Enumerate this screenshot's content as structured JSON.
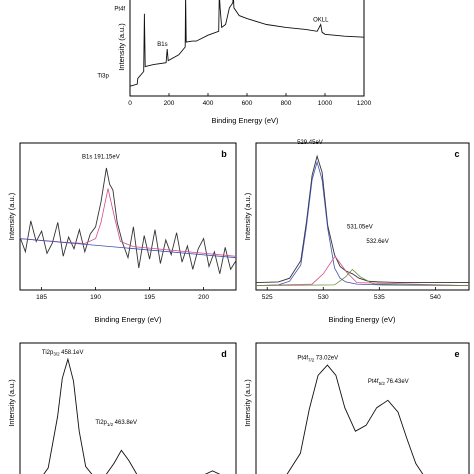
{
  "chart_data": [
    {
      "panel_label": "",
      "type": "line",
      "title": "",
      "xlabel": "Binding Energy (eV)",
      "ylabel": "Intensity (a.u.)",
      "xlim": [
        0,
        1200
      ],
      "xticks": [
        "0",
        "200",
        "400",
        "600",
        "800",
        "1000",
        "1200"
      ],
      "ylim": [
        0,
        10
      ],
      "grid": false,
      "annotations": [
        {
          "text": "Ti3p",
          "x": 38,
          "y": 1.6
        },
        {
          "text": "Pt4f",
          "x": 74,
          "y": 8.4
        },
        {
          "text": "B1s",
          "x": 191,
          "y": 4.8
        },
        {
          "text": "C1s",
          "x": 285,
          "y": 10.0
        },
        {
          "text": "OKLL",
          "x": 980,
          "y": 7.3
        }
      ],
      "series": [
        {
          "x": [
            0,
            37,
            40,
            70,
            74,
            78,
            120,
            185,
            191,
            196,
            250,
            283,
            285,
            288,
            320,
            340,
            400,
            455,
            458,
            462,
            470,
            490,
            510,
            527,
            530,
            533,
            560,
            600,
            700,
            800,
            900,
            960,
            978,
            985,
            1000,
            1100,
            1200
          ],
          "y": [
            1.0,
            1.2,
            1.8,
            2.5,
            8.4,
            3.0,
            3.2,
            3.4,
            4.8,
            3.6,
            4.2,
            5.0,
            10.5,
            5.5,
            5.6,
            5.6,
            6.2,
            6.6,
            10.5,
            9.0,
            7.0,
            7.3,
            9.0,
            9.5,
            10.5,
            9.0,
            8.2,
            7.9,
            7.3,
            7.0,
            6.8,
            6.6,
            7.3,
            6.5,
            6.3,
            6.1,
            6.0
          ]
        }
      ]
    },
    {
      "panel_label": "b",
      "type": "line",
      "title": "",
      "xlabel": "Binding Energy (eV)",
      "ylabel": "Intensity (a.u.)",
      "xlim": [
        183,
        203
      ],
      "xticks": [
        "185",
        "190",
        "195",
        "200"
      ],
      "ylim": [
        0,
        10
      ],
      "grid": false,
      "annotations": [
        {
          "text": "B1s 191.15eV",
          "x": 191.15,
          "y": 8.6
        }
      ],
      "series": [
        {
          "name": "",
          "color": "#333333",
          "x": [
            183.0,
            183.5,
            184.0,
            184.5,
            185.0,
            185.5,
            186.0,
            186.5,
            187.0,
            187.5,
            188.0,
            188.5,
            189.0,
            189.5,
            190.0,
            190.5,
            191.0,
            191.3,
            191.6,
            192.0,
            192.5,
            193.0,
            193.5,
            194.0,
            194.5,
            195.0,
            195.5,
            196.0,
            196.5,
            197.0,
            197.5,
            198.0,
            198.5,
            199.0,
            199.5,
            200.0,
            200.5,
            201.0,
            201.5,
            202.0,
            202.5,
            203.0
          ],
          "y": [
            3.6,
            2.6,
            4.7,
            3.3,
            4.0,
            2.5,
            3.2,
            4.6,
            2.3,
            3.6,
            2.8,
            4.1,
            2.6,
            3.8,
            4.3,
            6.0,
            8.3,
            7.2,
            6.8,
            4.6,
            3.2,
            2.2,
            4.3,
            1.5,
            3.7,
            2.1,
            4.1,
            1.8,
            3.4,
            2.4,
            3.9,
            1.9,
            3.0,
            1.4,
            2.8,
            3.5,
            1.6,
            2.6,
            1.1,
            2.9,
            1.4,
            2.0
          ]
        },
        {
          "name": "",
          "color": "#d24b8c",
          "x": [
            183,
            187,
            189,
            190,
            190.5,
            191.15,
            191.8,
            192.3,
            193.5,
            203
          ],
          "y": [
            3.5,
            3.25,
            3.16,
            3.5,
            4.6,
            6.9,
            4.8,
            3.3,
            2.95,
            2.29
          ]
        },
        {
          "name": "",
          "color": "#3d4fb0",
          "x": [
            183,
            203
          ],
          "y": [
            3.5,
            2.2
          ]
        }
      ]
    },
    {
      "panel_label": "c",
      "type": "line",
      "title": "",
      "xlabel": "Binding Energy (eV)",
      "ylabel": "Intensity (a.u.)",
      "xlim": [
        524,
        543
      ],
      "xticks": [
        "525",
        "530",
        "535",
        "540"
      ],
      "ylim": [
        0,
        10
      ],
      "grid": false,
      "annotations": [
        {
          "text": "529.45eV",
          "x": 529.45,
          "y": 9.6
        },
        {
          "text": "531.05eV",
          "x": 531.05,
          "y": 3.3
        },
        {
          "text": "532.6eV",
          "x": 532.6,
          "y": 2.3
        }
      ],
      "series": [
        {
          "name": "",
          "color": "#333333",
          "x": [
            524,
            526,
            527,
            528,
            528.5,
            529,
            529.45,
            529.9,
            530.4,
            531,
            531.5,
            532,
            532.6,
            533.2,
            534,
            535,
            537,
            539,
            541,
            543
          ],
          "y": [
            0.5,
            0.55,
            0.8,
            2.0,
            4.6,
            7.8,
            9.1,
            8.0,
            4.4,
            2.4,
            1.6,
            1.3,
            1.1,
            0.8,
            0.6,
            0.55,
            0.5,
            0.5,
            0.5,
            0.5
          ]
        },
        {
          "name": "",
          "color": "#3d4fb0",
          "x": [
            524,
            526,
            527,
            528,
            528.5,
            529,
            529.45,
            529.9,
            530.4,
            531,
            531.5,
            532,
            533,
            535,
            543
          ],
          "y": [
            0.3,
            0.35,
            0.6,
            1.7,
            4.3,
            7.5,
            8.7,
            7.5,
            4.2,
            1.5,
            0.8,
            0.55,
            0.4,
            0.35,
            0.3
          ]
        },
        {
          "name": "",
          "color": "#d24b8c",
          "x": [
            524,
            529,
            530,
            531.05,
            532.1,
            533,
            543
          ],
          "y": [
            0.3,
            0.4,
            1.1,
            2.3,
            1.2,
            0.5,
            0.3
          ]
        },
        {
          "name": "",
          "color": "#6a8d3a",
          "x": [
            524,
            531,
            532,
            532.6,
            533.3,
            534.5,
            543
          ],
          "y": [
            0.3,
            0.35,
            0.9,
            1.4,
            0.9,
            0.4,
            0.3
          ]
        }
      ]
    },
    {
      "panel_label": "d",
      "type": "line",
      "title": "",
      "xlabel": "",
      "ylabel": "Intensity (a.u.)",
      "xlim": [
        453,
        476
      ],
      "ylim": [
        0,
        10
      ],
      "grid": false,
      "annotations": [
        {
          "text": "Ti2p",
          "sub": "3/2",
          "value": "458.1eV",
          "x": 458.1,
          "y": 9.2
        },
        {
          "text": "Ti2p",
          "sub": "1/2",
          "value": "463.8eV",
          "x": 463.8,
          "y": 4.0
        }
      ],
      "series": [
        {
          "x": [
            453,
            455,
            456,
            457,
            457.5,
            458.1,
            458.7,
            459.3,
            460,
            461,
            462,
            463,
            463.8,
            464.6,
            465.5,
            467,
            469,
            471,
            472.5,
            473.5,
            474.5,
            476
          ],
          "y": [
            0.5,
            0.6,
            1.5,
            5.0,
            7.6,
            8.9,
            7.4,
            4.0,
            1.6,
            0.8,
            0.9,
            1.8,
            2.7,
            2.0,
            1.0,
            0.6,
            0.5,
            0.6,
            1.0,
            1.3,
            1.0,
            0.8
          ]
        }
      ]
    },
    {
      "panel_label": "e",
      "type": "line",
      "title": "",
      "xlabel": "",
      "ylabel": "Intensity (a.u.)",
      "xlim": [
        69,
        81
      ],
      "ylim": [
        0,
        10
      ],
      "grid": false,
      "annotations": [
        {
          "text": "Pt4f",
          "sub": "7/2",
          "value": "73.02eV",
          "x": 73.02,
          "y": 8.8
        },
        {
          "text": "Pt4f",
          "sub": "5/2",
          "value": "76.43eV",
          "x": 76.43,
          "y": 6.8
        }
      ],
      "series": [
        {
          "x": [
            69,
            70.5,
            71.5,
            72,
            72.5,
            73.02,
            73.5,
            74,
            74.6,
            75.2,
            75.8,
            76.43,
            77,
            77.5,
            78,
            78.5,
            79,
            81
          ],
          "y": [
            0.4,
            0.6,
            2.5,
            5.5,
            7.8,
            8.5,
            7.8,
            5.6,
            4.0,
            4.4,
            5.6,
            6.1,
            5.3,
            3.5,
            1.8,
            0.9,
            0.5,
            0.4
          ]
        }
      ]
    }
  ]
}
